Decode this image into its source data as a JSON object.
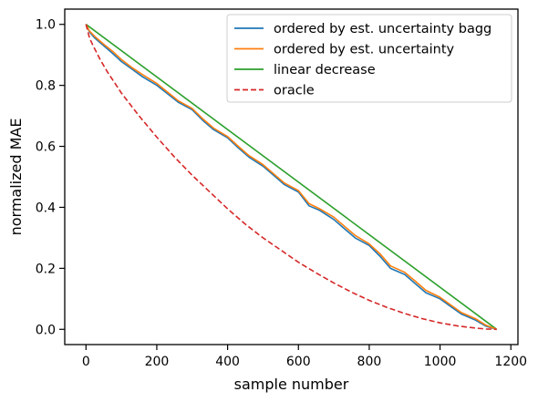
{
  "chart_data": {
    "type": "line",
    "xlabel": "sample number",
    "ylabel": "normalized MAE",
    "xlim": [
      -60,
      1220
    ],
    "ylim": [
      -0.05,
      1.05
    ],
    "x_ticks": [
      0,
      200,
      400,
      600,
      800,
      1000,
      1200
    ],
    "y_ticks": [
      0.0,
      0.2,
      0.4,
      0.6,
      0.8,
      1.0
    ],
    "x_tick_labels": [
      "0",
      "200",
      "400",
      "600",
      "800",
      "1000",
      "1200"
    ],
    "y_tick_labels": [
      "0.0",
      "0.2",
      "0.4",
      "0.6",
      "0.8",
      "1.0"
    ],
    "grid": false,
    "legend_position": "top-right",
    "series": [
      {
        "name": "ordered by est. uncertainty bagg",
        "color": "#1f77b4",
        "dash": "solid",
        "x": [
          0,
          10,
          25,
          50,
          75,
          100,
          130,
          160,
          200,
          230,
          260,
          300,
          330,
          360,
          400,
          430,
          460,
          500,
          530,
          560,
          600,
          630,
          660,
          700,
          730,
          760,
          800,
          830,
          860,
          900,
          930,
          960,
          1000,
          1030,
          1060,
          1100,
          1130,
          1160
        ],
        "y": [
          1.0,
          0.975,
          0.955,
          0.93,
          0.905,
          0.878,
          0.853,
          0.828,
          0.8,
          0.773,
          0.745,
          0.72,
          0.685,
          0.655,
          0.628,
          0.595,
          0.565,
          0.535,
          0.505,
          0.475,
          0.45,
          0.405,
          0.39,
          0.36,
          0.33,
          0.3,
          0.275,
          0.24,
          0.2,
          0.18,
          0.15,
          0.12,
          0.1,
          0.075,
          0.05,
          0.03,
          0.01,
          0.0
        ]
      },
      {
        "name": "ordered by est. uncertainty",
        "color": "#ff7f0e",
        "dash": "solid",
        "x": [
          0,
          10,
          25,
          50,
          75,
          100,
          130,
          160,
          200,
          230,
          260,
          300,
          330,
          360,
          400,
          430,
          460,
          500,
          530,
          560,
          600,
          630,
          660,
          700,
          730,
          760,
          800,
          830,
          860,
          900,
          930,
          960,
          1000,
          1030,
          1060,
          1100,
          1130,
          1160
        ],
        "y": [
          1.0,
          0.978,
          0.96,
          0.935,
          0.912,
          0.885,
          0.858,
          0.835,
          0.806,
          0.778,
          0.75,
          0.724,
          0.69,
          0.66,
          0.632,
          0.6,
          0.57,
          0.54,
          0.51,
          0.48,
          0.455,
          0.412,
          0.395,
          0.368,
          0.338,
          0.308,
          0.28,
          0.248,
          0.208,
          0.187,
          0.158,
          0.128,
          0.105,
          0.08,
          0.055,
          0.035,
          0.013,
          0.0
        ]
      },
      {
        "name": "linear decrease",
        "color": "#2ca02c",
        "dash": "solid",
        "x": [
          0,
          1160
        ],
        "y": [
          1.0,
          0.0
        ]
      },
      {
        "name": "oracle",
        "color": "#d62728",
        "dash": "dashed",
        "x": [
          0,
          10,
          20,
          40,
          60,
          80,
          100,
          150,
          200,
          250,
          300,
          350,
          400,
          450,
          500,
          550,
          600,
          650,
          700,
          750,
          800,
          850,
          900,
          950,
          1000,
          1050,
          1100,
          1130,
          1160
        ],
        "y": [
          1.0,
          0.955,
          0.93,
          0.885,
          0.845,
          0.81,
          0.775,
          0.7,
          0.63,
          0.565,
          0.505,
          0.45,
          0.395,
          0.345,
          0.3,
          0.26,
          0.22,
          0.185,
          0.152,
          0.122,
          0.095,
          0.072,
          0.052,
          0.035,
          0.021,
          0.011,
          0.004,
          0.001,
          0.0
        ]
      }
    ]
  }
}
